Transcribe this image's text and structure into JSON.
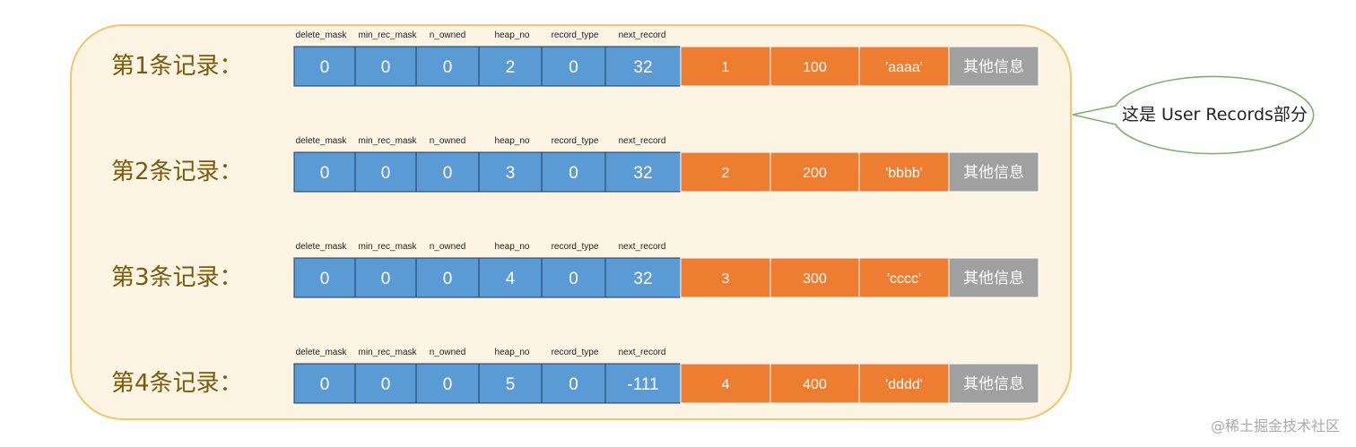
{
  "colors": {
    "header_cell": "#5b9bd5",
    "data_cell": "#ed7d31",
    "extra_cell": "#a0a0a0",
    "panel_fill": "#fdf4e3",
    "panel_border": "#f2c66c",
    "bubble_border": "#7fb069",
    "cell_border": "#1f3a5a"
  },
  "header_fields": [
    "delete_mask",
    "min_rec_mask",
    "n_owned",
    "heap_no",
    "record_type",
    "next_record"
  ],
  "records": [
    {
      "label": "第1条记录：",
      "header": [
        "0",
        "0",
        "0",
        "2",
        "0",
        "32"
      ],
      "data": [
        "1",
        "100",
        "'aaaa'"
      ],
      "extra": "其他信息"
    },
    {
      "label": "第2条记录：",
      "header": [
        "0",
        "0",
        "0",
        "3",
        "0",
        "32"
      ],
      "data": [
        "2",
        "200",
        "'bbbb'"
      ],
      "extra": "其他信息"
    },
    {
      "label": "第3条记录：",
      "header": [
        "0",
        "0",
        "0",
        "4",
        "0",
        "32"
      ],
      "data": [
        "3",
        "300",
        "'cccc'"
      ],
      "extra": "其他信息"
    },
    {
      "label": "第4条记录：",
      "header": [
        "0",
        "0",
        "0",
        "5",
        "0",
        "-111"
      ],
      "data": [
        "4",
        "400",
        "'dddd'"
      ],
      "extra": "其他信息"
    }
  ],
  "callout": "这是 User Records部分",
  "watermark": "@稀土掘金技术社区"
}
